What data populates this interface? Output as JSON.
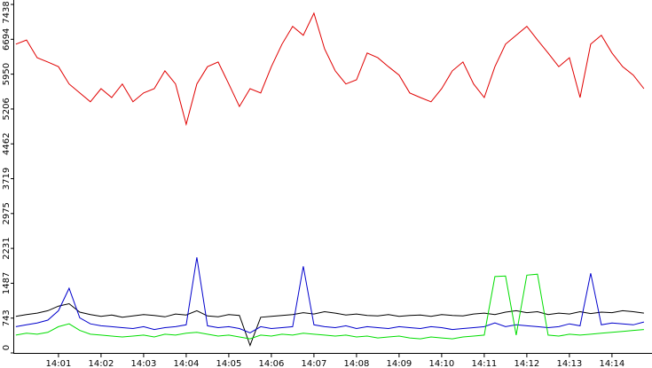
{
  "chart_data": {
    "type": "line",
    "x": [
      0,
      0.25,
      0.5,
      0.75,
      1,
      1.25,
      1.5,
      1.75,
      2,
      2.25,
      2.5,
      2.75,
      3,
      3.25,
      3.5,
      3.75,
      4,
      4.25,
      4.5,
      4.75,
      5,
      5.25,
      5.5,
      5.75,
      6,
      6.25,
      6.5,
      6.75,
      7,
      7.25,
      7.5,
      7.75,
      8,
      8.25,
      8.5,
      8.75,
      9,
      9.25,
      9.5,
      9.75,
      10,
      10.25,
      10.5,
      10.75,
      11,
      11.25,
      11.5,
      11.75,
      12,
      12.25,
      12.5,
      12.75,
      13,
      13.25,
      13.5,
      13.75,
      14,
      14.25,
      14.5,
      14.75
    ],
    "series": [
      {
        "color": "#e00000",
        "values": [
          6590,
          6680,
          6300,
          6210,
          6110,
          5740,
          5550,
          5360,
          5640,
          5450,
          5740,
          5360,
          5550,
          5640,
          6020,
          5740,
          4880,
          5740,
          6110,
          6210,
          5740,
          5260,
          5640,
          5550,
          6110,
          6590,
          6970,
          6780,
          7250,
          6490,
          6020,
          5740,
          5830,
          6400,
          6300,
          6110,
          5930,
          5550,
          5450,
          5360,
          5640,
          6020,
          6210,
          5740,
          5450,
          6110,
          6590,
          6780,
          6970,
          6680,
          6400,
          6110,
          6300,
          5450,
          6590,
          6780,
          6400,
          6110,
          5930,
          5640
        ]
      },
      {
        "color": "#000000",
        "values": [
          780,
          820,
          850,
          900,
          1000,
          1050,
          870,
          820,
          780,
          810,
          760,
          790,
          820,
          800,
          770,
          830,
          810,
          900,
          790,
          770,
          820,
          800,
          160,
          760,
          780,
          800,
          820,
          860,
          830,
          880,
          850,
          810,
          830,
          800,
          790,
          820,
          780,
          800,
          810,
          780,
          820,
          800,
          790,
          830,
          850,
          820,
          870,
          900,
          860,
          880,
          820,
          850,
          830,
          880,
          840,
          870,
          860,
          900,
          880,
          850
        ]
      },
      {
        "color": "#0000cc",
        "values": [
          560,
          600,
          640,
          700,
          900,
          1380,
          750,
          620,
          580,
          560,
          540,
          520,
          560,
          500,
          540,
          560,
          600,
          2040,
          580,
          540,
          560,
          520,
          430,
          560,
          520,
          540,
          560,
          1850,
          600,
          560,
          540,
          580,
          520,
          560,
          540,
          520,
          560,
          540,
          520,
          560,
          540,
          500,
          520,
          540,
          560,
          640,
          560,
          600,
          580,
          560,
          540,
          560,
          620,
          580,
          1700,
          600,
          640,
          620,
          600,
          660
        ]
      },
      {
        "color": "#00dd00",
        "values": [
          380,
          420,
          400,
          440,
          560,
          620,
          480,
          400,
          380,
          360,
          340,
          360,
          380,
          340,
          400,
          380,
          420,
          440,
          400,
          360,
          380,
          340,
          300,
          380,
          360,
          400,
          380,
          420,
          400,
          380,
          360,
          380,
          340,
          360,
          320,
          340,
          360,
          320,
          300,
          340,
          320,
          300,
          340,
          360,
          380,
          1630,
          1640,
          380,
          1660,
          1680,
          380,
          360,
          400,
          380,
          400,
          420,
          440,
          460,
          480,
          500
        ]
      }
    ],
    "xlim": [
      -0.04,
      14.94
    ],
    "xticks": [
      {
        "value": 1,
        "label": "14:01"
      },
      {
        "value": 2,
        "label": "14:02"
      },
      {
        "value": 3,
        "label": "14:03"
      },
      {
        "value": 4,
        "label": "14:04"
      },
      {
        "value": 5,
        "label": "14:05"
      },
      {
        "value": 6,
        "label": "14:06"
      },
      {
        "value": 7,
        "label": "14:07"
      },
      {
        "value": 8,
        "label": "14:08"
      },
      {
        "value": 9,
        "label": "14:09"
      },
      {
        "value": 10,
        "label": "14:10"
      },
      {
        "value": 11,
        "label": "14:11"
      },
      {
        "value": 12,
        "label": "14:12"
      },
      {
        "value": 13,
        "label": "14:13"
      },
      {
        "value": 14,
        "label": "14:14"
      }
    ],
    "ylim": [
      0,
      7438
    ],
    "yticks": [
      0,
      743,
      1487,
      2231,
      2975,
      3719,
      4462,
      5206,
      5950,
      6694,
      7438
    ]
  }
}
